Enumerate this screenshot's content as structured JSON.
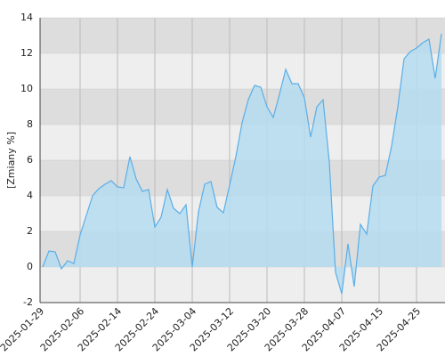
{
  "chart_data": {
    "type": "area",
    "y_label": "[Zmiany %]",
    "categories": [
      "2025-01-29",
      null,
      null,
      null,
      null,
      null,
      "2025-02-06",
      null,
      null,
      null,
      null,
      null,
      "2025-02-14",
      null,
      null,
      null,
      null,
      null,
      "2025-02-24",
      null,
      null,
      null,
      null,
      null,
      "2025-03-04",
      null,
      null,
      null,
      null,
      null,
      "2025-03-12",
      null,
      null,
      null,
      null,
      null,
      "2025-03-20",
      null,
      null,
      null,
      null,
      null,
      "2025-03-28",
      null,
      null,
      null,
      null,
      null,
      "2025-04-07",
      null,
      null,
      null,
      null,
      null,
      "2025-04-15",
      null,
      null,
      null,
      null,
      null,
      "2025-04-25",
      null,
      null,
      null,
      null
    ],
    "values": [
      0,
      0.9,
      0.85,
      -0.1,
      0.35,
      0.2,
      1.8,
      2.9,
      4.0,
      4.4,
      4.65,
      4.85,
      4.5,
      4.45,
      6.2,
      4.95,
      4.25,
      4.35,
      2.25,
      2.8,
      4.35,
      3.3,
      3.0,
      3.5,
      0.0,
      3.1,
      4.65,
      4.8,
      3.35,
      3.05,
      4.6,
      6.2,
      8.1,
      9.4,
      10.2,
      10.1,
      9.0,
      8.4,
      9.7,
      11.1,
      10.3,
      10.3,
      9.5,
      7.3,
      9.0,
      9.4,
      5.9,
      -0.3,
      -1.5,
      1.3,
      -1.1,
      2.4,
      1.85,
      4.55,
      5.05,
      5.15,
      6.8,
      9.0,
      11.7,
      12.1,
      12.3,
      12.6,
      12.8,
      10.6,
      13.1
    ],
    "color": "#5aaee8",
    "fill": "#b5dcef",
    "ylim": [
      -2,
      14
    ],
    "yticks": [
      -2,
      0,
      2,
      4,
      6,
      8,
      10,
      12,
      14
    ],
    "grid": true
  }
}
